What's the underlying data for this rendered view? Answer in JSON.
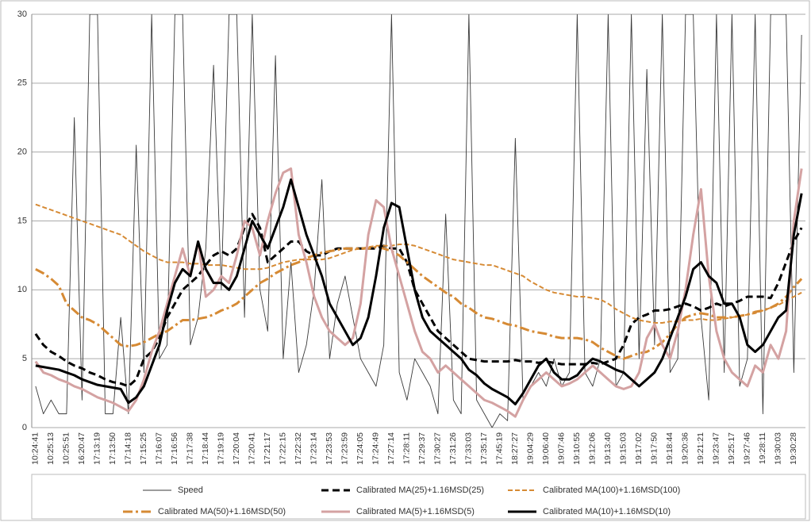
{
  "chart_data": {
    "type": "line",
    "categories": [
      "10:24:41",
      null,
      "10:25:13",
      null,
      "10:25:51",
      null,
      "16:20:47",
      null,
      "17:13:19",
      null,
      "17:13:50",
      null,
      "17:14:18",
      null,
      "17:15:25",
      null,
      "17:16:07",
      null,
      "17:16:56",
      null,
      "17:17:38",
      null,
      "17:18:44",
      null,
      "17:19:19",
      null,
      "17:20:04",
      null,
      "17:20:41",
      null,
      "17:21:17",
      null,
      "17:22:15",
      null,
      "17:22:32",
      null,
      "17:23:14",
      null,
      "17:23:53",
      null,
      "17:23:59",
      null,
      "17:24:05",
      null,
      "17:24:49",
      null,
      "17:27:14",
      null,
      "17:28:11",
      null,
      "17:29:37",
      null,
      "17:30:27",
      null,
      "17:31:26",
      null,
      "17:33:03",
      null,
      "17:35:17",
      null,
      "17:45:19",
      null,
      "18:27:27",
      null,
      "19:04:29",
      null,
      "19:06:40",
      null,
      "19:07:46",
      null,
      "19:10:55",
      null,
      "19:12:06",
      null,
      "19:13:40",
      null,
      "19:15:03",
      null,
      "19:17:02",
      null,
      "19:17:50",
      null,
      "19:18:44",
      null,
      "19:20:36",
      null,
      "19:21:21",
      null,
      "19:23:47",
      null,
      "19:25:17",
      null,
      "19:27:46",
      null,
      "19:28:11",
      null,
      "19:30:03",
      null,
      "19:30:28",
      null
    ],
    "series": [
      {
        "name": "Speed",
        "color": "#3a3a3a",
        "dash": "solid",
        "weight": "thin",
        "values": [
          3,
          1,
          2,
          1,
          1,
          22.5,
          2,
          30,
          30,
          1,
          1,
          8,
          1,
          20.5,
          4,
          30,
          5,
          6,
          30,
          30,
          6,
          8,
          13,
          26.3,
          10,
          30,
          30,
          8,
          30,
          10,
          7,
          27,
          5,
          12,
          4,
          6,
          10,
          18,
          5,
          9,
          11,
          8,
          5,
          4,
          3,
          6,
          30,
          4,
          2,
          5,
          4,
          3,
          1,
          15.5,
          2,
          1,
          30,
          2,
          1,
          0,
          1,
          0.5,
          21,
          2,
          3,
          4,
          3,
          5,
          3,
          4,
          30,
          4,
          3,
          5,
          30,
          3,
          4,
          30,
          5,
          26,
          6,
          30,
          4,
          5,
          30,
          30,
          8,
          2,
          30,
          4,
          30,
          3,
          5,
          30,
          1,
          30,
          30,
          30,
          4,
          28.5
        ]
      },
      {
        "name": "Calibrated MA(25)+1.16MSD(25)",
        "color": "#000000",
        "dash": "dashed",
        "weight": "thick",
        "values": [
          6.8,
          6.0,
          5.5,
          5.2,
          4.8,
          4.5,
          4.3,
          4.0,
          3.8,
          3.5,
          3.3,
          3.2,
          3.0,
          3.5,
          5.0,
          5.5,
          6.5,
          8.0,
          9.0,
          10.0,
          10.5,
          11.0,
          11.8,
          12.5,
          12.8,
          12.5,
          13.0,
          14.5,
          15.5,
          14.5,
          12.0,
          12.5,
          13.0,
          13.5,
          13.5,
          12.8,
          12.5,
          12.5,
          12.8,
          13.0,
          13.0,
          13.0,
          13.0,
          13.0,
          13.0,
          13.2,
          13.0,
          13.0,
          12.0,
          10.0,
          9.0,
          8.0,
          7.0,
          6.5,
          6.0,
          5.5,
          5.0,
          4.9,
          4.8,
          4.8,
          4.8,
          4.8,
          4.9,
          4.8,
          4.8,
          4.7,
          4.8,
          4.7,
          4.6,
          4.6,
          4.6,
          4.6,
          4.7,
          4.6,
          4.8,
          5.0,
          6.0,
          7.5,
          8.0,
          8.2,
          8.5,
          8.5,
          8.6,
          8.8,
          9.0,
          8.8,
          8.5,
          8.7,
          9.0,
          8.8,
          9.0,
          9.2,
          9.5,
          9.5,
          9.5,
          9.4,
          10.5,
          12.0,
          13.5,
          14.5
        ]
      },
      {
        "name": "Calibrated MA(100)+1.16MSD(100)",
        "color": "#d68a34",
        "dash": "dashed",
        "weight": "medium",
        "values": [
          16.2,
          16.0,
          15.8,
          15.6,
          15.4,
          15.2,
          15.0,
          14.8,
          14.6,
          14.4,
          14.2,
          14.0,
          13.6,
          13.2,
          12.8,
          12.5,
          12.2,
          12.0,
          12.0,
          12.0,
          11.9,
          11.9,
          11.8,
          11.8,
          11.8,
          11.7,
          11.6,
          11.5,
          11.5,
          11.5,
          11.6,
          11.8,
          12.0,
          12.1,
          12.2,
          12.2,
          12.2,
          12.2,
          12.3,
          12.5,
          12.7,
          12.9,
          13.0,
          13.1,
          13.2,
          13.2,
          13.2,
          13.3,
          13.3,
          13.2,
          13.0,
          12.8,
          12.6,
          12.4,
          12.2,
          12.1,
          12.0,
          11.9,
          11.8,
          11.8,
          11.6,
          11.4,
          11.2,
          11.0,
          10.6,
          10.3,
          10.0,
          9.8,
          9.7,
          9.6,
          9.5,
          9.5,
          9.4,
          9.3,
          9.0,
          8.6,
          8.3,
          8.0,
          7.8,
          7.7,
          7.6,
          7.6,
          7.7,
          7.7,
          7.8,
          7.8,
          7.9,
          7.8,
          7.8,
          7.9,
          8.0,
          8.1,
          8.2,
          8.3,
          8.5,
          8.7,
          8.9,
          9.2,
          9.5,
          9.8
        ]
      },
      {
        "name": "Calibrated MA(50)+1.16MSD(50)",
        "color": "#d68a34",
        "dash": "dash-dot",
        "weight": "thick",
        "values": [
          11.5,
          11.2,
          10.8,
          10.3,
          9.0,
          8.5,
          8.0,
          7.8,
          7.5,
          7.0,
          6.5,
          6.0,
          5.9,
          6.0,
          6.2,
          6.5,
          6.8,
          7.0,
          7.4,
          7.8,
          7.8,
          7.9,
          8.0,
          8.2,
          8.5,
          8.7,
          9.0,
          9.5,
          10.0,
          10.5,
          10.8,
          11.2,
          11.5,
          11.8,
          12.0,
          12.3,
          12.5,
          12.7,
          12.8,
          12.9,
          13.0,
          13.0,
          13.0,
          13.0,
          13.1,
          13.0,
          12.8,
          12.5,
          12.0,
          11.5,
          11.0,
          10.6,
          10.2,
          9.8,
          9.5,
          9.0,
          8.7,
          8.3,
          8.0,
          7.9,
          7.7,
          7.5,
          7.4,
          7.2,
          7.0,
          6.9,
          6.8,
          6.6,
          6.5,
          6.5,
          6.5,
          6.4,
          6.2,
          5.8,
          5.5,
          5.2,
          5.0,
          5.2,
          5.4,
          5.5,
          5.8,
          6.2,
          6.8,
          7.5,
          8.0,
          8.2,
          8.3,
          8.2,
          8.0,
          8.0,
          8.0,
          8.1,
          8.2,
          8.4,
          8.5,
          8.7,
          9.0,
          9.5,
          10.2,
          10.8
        ]
      },
      {
        "name": "Calibrated MA(5)+1.16MSD(5)",
        "color": "#d4a2a2",
        "dash": "solid",
        "weight": "thick",
        "values": [
          4.8,
          4.0,
          3.8,
          3.5,
          3.3,
          3.0,
          2.8,
          2.5,
          2.2,
          2.0,
          1.8,
          1.5,
          1.2,
          2.0,
          3.5,
          5.5,
          7.0,
          9.0,
          11.0,
          13.0,
          11.0,
          13.5,
          9.5,
          10.0,
          11.0,
          10.5,
          12.5,
          15.0,
          14.5,
          12.5,
          15.0,
          17.0,
          18.5,
          18.8,
          14.0,
          12.0,
          9.5,
          8.0,
          7.0,
          6.5,
          6.0,
          6.5,
          9.0,
          14.0,
          16.5,
          16.0,
          13.0,
          11.0,
          9.0,
          7.0,
          5.5,
          5.0,
          4.0,
          4.5,
          4.0,
          3.5,
          3.0,
          2.5,
          2.0,
          1.8,
          1.5,
          1.2,
          0.8,
          2.0,
          3.0,
          3.5,
          4.0,
          3.5,
          3.0,
          3.2,
          3.5,
          4.0,
          4.5,
          4.0,
          3.5,
          3.0,
          2.8,
          3.0,
          4.0,
          6.5,
          7.5,
          6.0,
          5.0,
          7.0,
          10.0,
          14.0,
          17.3,
          11.0,
          7.0,
          5.0,
          4.0,
          3.5,
          3.0,
          4.5,
          4.0,
          6.0,
          5.0,
          7.0,
          15.0,
          18.8
        ]
      },
      {
        "name": "Calibrated MA(10)+1.16MSD(10)",
        "color": "#000000",
        "dash": "solid",
        "weight": "thick",
        "values": [
          4.5,
          4.4,
          4.3,
          4.2,
          4.0,
          3.8,
          3.5,
          3.3,
          3.1,
          3.0,
          2.9,
          2.8,
          1.8,
          2.2,
          3.0,
          4.5,
          6.0,
          8.5,
          10.5,
          11.5,
          11.0,
          13.5,
          11.5,
          10.5,
          10.5,
          10.0,
          11.0,
          13.0,
          15.0,
          14.0,
          13.0,
          14.5,
          16.0,
          18.0,
          16.0,
          14.0,
          12.5,
          11.0,
          9.0,
          8.0,
          7.0,
          6.0,
          6.5,
          8.0,
          11.0,
          14.5,
          16.3,
          16.0,
          13.0,
          10.0,
          8.0,
          7.0,
          6.5,
          6.0,
          5.5,
          5.0,
          4.2,
          3.8,
          3.2,
          2.8,
          2.5,
          2.2,
          1.7,
          2.5,
          3.5,
          4.5,
          5.0,
          4.0,
          3.5,
          3.5,
          3.8,
          4.5,
          5.0,
          4.8,
          4.5,
          4.2,
          4.0,
          3.5,
          3.0,
          3.5,
          4.0,
          5.0,
          6.5,
          8.0,
          9.5,
          11.5,
          12.0,
          11.0,
          10.5,
          9.0,
          9.0,
          8.0,
          6.0,
          5.5,
          6.0,
          7.0,
          8.0,
          8.5,
          14.0,
          17.0
        ]
      }
    ],
    "ylim": [
      0,
      30
    ],
    "yticks": [
      0,
      5,
      10,
      15,
      20,
      25,
      30
    ],
    "grid": true,
    "legend": "bottom"
  }
}
